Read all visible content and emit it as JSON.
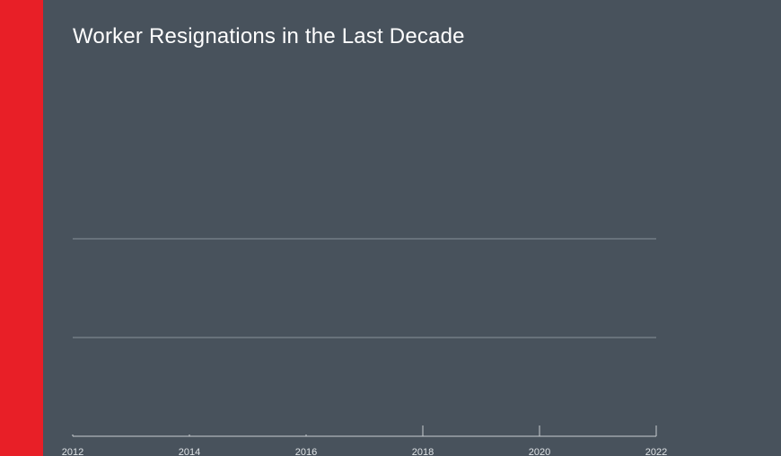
{
  "colors": {
    "background": "#48525c",
    "accent_bar": "#e81f27",
    "title": "#ffffff",
    "gridline": "#9aa2aa",
    "axis": "#c8ccd0",
    "tick_label": "#dfe3e6"
  },
  "chart_data": {
    "type": "line",
    "title": "Worker Resignations in the Last Decade",
    "xlabel": "",
    "ylabel": "",
    "x_ticks": [
      "2012",
      "2014",
      "2016",
      "2018",
      "2020",
      "2022"
    ],
    "xlim": [
      2012,
      2022
    ],
    "y_gridlines": 2,
    "grid": true,
    "legend": "none",
    "series": []
  }
}
